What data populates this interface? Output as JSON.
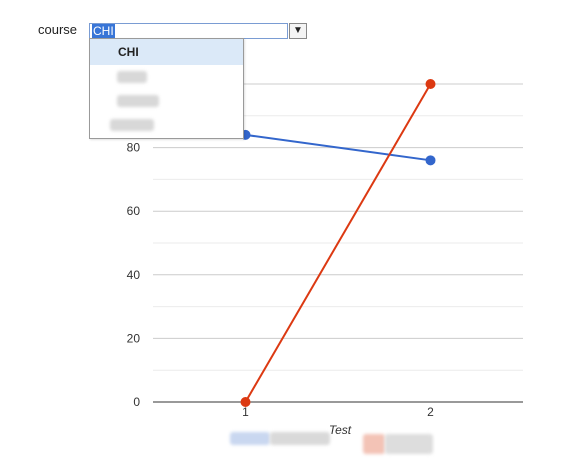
{
  "filter": {
    "label": "course",
    "input_value": "CHI",
    "toggle_symbol": "▼",
    "options": [
      {
        "label": "CHI",
        "selected": true
      },
      {
        "label": "",
        "selected": false
      },
      {
        "label": "",
        "selected": false
      },
      {
        "label": "",
        "selected": false
      }
    ]
  },
  "chart_data": {
    "type": "line",
    "title": "",
    "xlabel": "Test",
    "ylabel": "",
    "x": [
      1,
      2
    ],
    "xlim": [
      0.5,
      2.5
    ],
    "ylim": [
      0,
      100
    ],
    "yticks": [
      0,
      20,
      40,
      60,
      80
    ],
    "grid": true,
    "legend": "bottom",
    "series": [
      {
        "color": "#3366cc",
        "values": [
          84,
          76
        ]
      },
      {
        "color": "#dc3912",
        "values": [
          0,
          100
        ]
      }
    ]
  }
}
